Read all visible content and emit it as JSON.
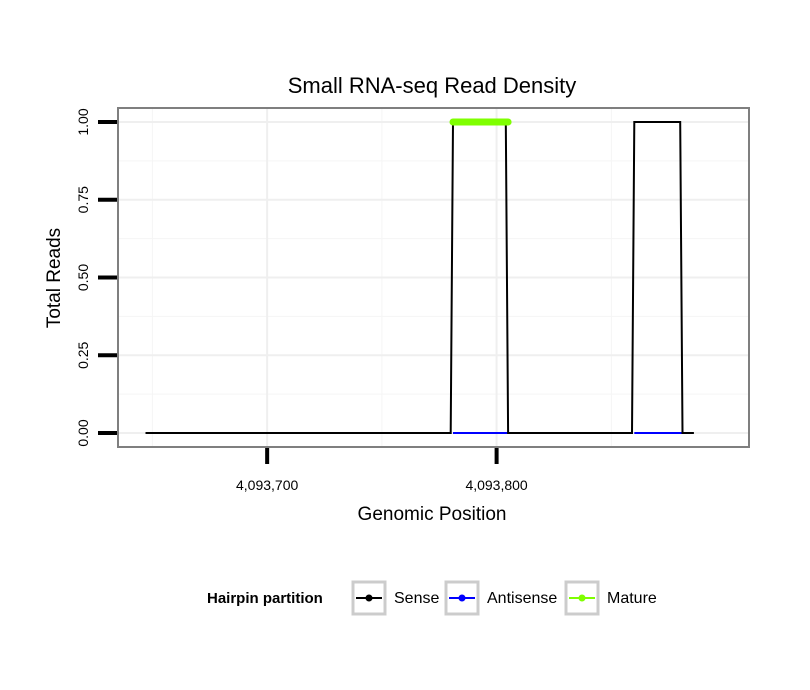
{
  "chart_data": {
    "type": "line",
    "title": "Small RNA-seq Read Density",
    "xlabel": "Genomic Position",
    "ylabel": "Total Reads",
    "xlim": [
      4093635,
      4093910
    ],
    "ylim": [
      -0.045,
      1.045
    ],
    "x_ticks": [
      4093700,
      4093800
    ],
    "x_tick_labels": [
      "4,093,700",
      "4,093,800"
    ],
    "y_ticks": [
      0,
      0.25,
      0.5,
      0.75,
      1.0
    ],
    "y_tick_labels": [
      "0.00",
      "0.25",
      "0.50",
      "0.75",
      "1.00"
    ],
    "grid": true,
    "series": [
      {
        "name": "Sense",
        "color": "#000000",
        "x": [
          4093647,
          4093780,
          4093781,
          4093804,
          4093805,
          4093859,
          4093860,
          4093880,
          4093881,
          4093886
        ],
        "y": [
          0,
          0,
          1,
          1,
          0,
          0,
          1,
          1,
          0,
          0
        ]
      },
      {
        "name": "Antisense",
        "color": "#0000ff",
        "x": [
          4093781,
          4093805,
          4093806,
          4093859,
          4093860,
          4093881
        ],
        "y": [
          0,
          0,
          null,
          null,
          0,
          0
        ]
      },
      {
        "name": "Mature",
        "color": "#7fff00",
        "x": [
          4093781,
          4093805
        ],
        "y": [
          1,
          1
        ]
      }
    ],
    "legend": {
      "title": "Hairpin partition",
      "position": "bottom",
      "entries": [
        {
          "label": "Sense",
          "color": "#000000"
        },
        {
          "label": "Antisense",
          "color": "#0000ff"
        },
        {
          "label": "Mature",
          "color": "#7fff00"
        }
      ]
    }
  }
}
